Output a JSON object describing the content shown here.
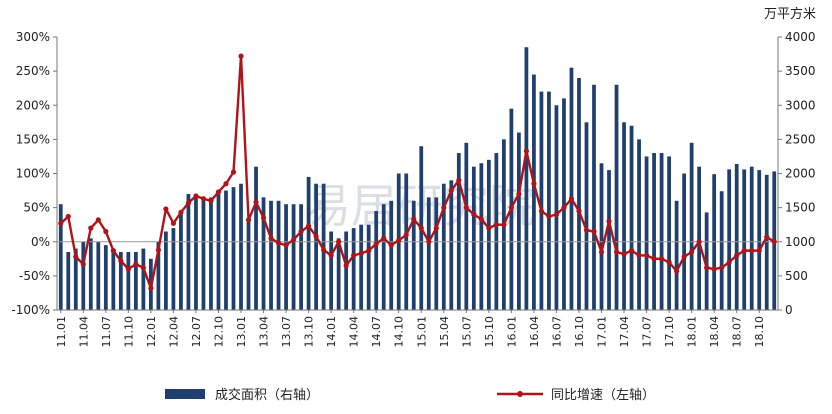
{
  "chart_data": {
    "type": "bar-line",
    "title": "",
    "watermark": "易居研究院",
    "right_axis_unit": "万平方米",
    "colors": {
      "bar": "#1f3f6e",
      "line": "#b0141b"
    },
    "left_axis": {
      "ylim": [
        -100,
        300
      ],
      "ticks": [
        "-100%",
        "-50%",
        "0%",
        "50%",
        "100%",
        "150%",
        "200%",
        "250%",
        "300%"
      ]
    },
    "right_axis": {
      "ylim": [
        0,
        4000
      ],
      "ticks": [
        "0",
        "500",
        "1000",
        "1500",
        "2000",
        "2500",
        "3000",
        "3500",
        "4000"
      ]
    },
    "x_tick_labels": [
      "11.01",
      "11.04",
      "11.07",
      "11.10",
      "12.01",
      "12.04",
      "12.07",
      "12.10",
      "13.01",
      "13.04",
      "13.07",
      "13.10",
      "14.01",
      "14.04",
      "14.07",
      "14.10",
      "15.01",
      "15.04",
      "15.07",
      "15.10",
      "16.01",
      "16.04",
      "16.07",
      "16.10",
      "17.01",
      "17.04",
      "17.07",
      "17.10",
      "18.01",
      "18.04",
      "18.07",
      "18.10"
    ],
    "months": [
      "11.01",
      "11.02",
      "11.03",
      "11.04",
      "11.05",
      "11.06",
      "11.07",
      "11.08",
      "11.09",
      "11.10",
      "11.11",
      "11.12",
      "12.01",
      "12.02",
      "12.03",
      "12.04",
      "12.05",
      "12.06",
      "12.07",
      "12.08",
      "12.09",
      "12.10",
      "12.11",
      "12.12",
      "13.01",
      "13.02",
      "13.03",
      "13.04",
      "13.05",
      "13.06",
      "13.07",
      "13.08",
      "13.09",
      "13.10",
      "13.11",
      "13.12",
      "14.01",
      "14.02",
      "14.03",
      "14.04",
      "14.05",
      "14.06",
      "14.07",
      "14.08",
      "14.09",
      "14.10",
      "14.11",
      "14.12",
      "15.01",
      "15.02",
      "15.03",
      "15.04",
      "15.05",
      "15.06",
      "15.07",
      "15.08",
      "15.09",
      "15.10",
      "15.11",
      "15.12",
      "16.01",
      "16.02",
      "16.03",
      "16.04",
      "16.05",
      "16.06",
      "16.07",
      "16.08",
      "16.09",
      "16.10",
      "16.11",
      "16.12",
      "17.01",
      "17.02",
      "17.03",
      "17.04",
      "17.05",
      "17.06",
      "17.07",
      "17.08",
      "17.09",
      "17.10",
      "17.11",
      "17.12",
      "18.01",
      "18.02",
      "18.03",
      "18.04",
      "18.05",
      "18.06",
      "18.07",
      "18.08",
      "18.09",
      "18.10",
      "18.11",
      "18.12"
    ],
    "series": [
      {
        "name": "成交面积（右轴）",
        "type": "bar",
        "axis": "right",
        "values": [
          1550,
          850,
          900,
          1000,
          1050,
          1000,
          950,
          900,
          850,
          850,
          850,
          900,
          750,
          1000,
          1150,
          1200,
          1450,
          1700,
          1700,
          1650,
          1650,
          1700,
          1750,
          1800,
          1850,
          1300,
          2100,
          1650,
          1600,
          1600,
          1550,
          1550,
          1550,
          1950,
          1850,
          1850,
          1150,
          1050,
          1150,
          1200,
          1250,
          1250,
          1450,
          1550,
          1600,
          2000,
          2000,
          1600,
          2400,
          1650,
          1650,
          1850,
          1900,
          2300,
          2450,
          2100,
          2150,
          2200,
          2300,
          2500,
          2950,
          2600,
          3850,
          3450,
          3200,
          3200,
          3000,
          3100,
          3550,
          3400,
          2750,
          3300,
          2150,
          2050,
          3300,
          2750,
          2700,
          2500,
          2250,
          2300,
          2300,
          2250,
          1600,
          2000,
          2450,
          2100,
          1430,
          1990,
          1740,
          2060,
          2140,
          2060,
          2100,
          2050,
          1980,
          2030
        ]
      },
      {
        "name": "同比增速（左轴）",
        "type": "line",
        "axis": "left",
        "values": [
          27,
          37,
          -22,
          -33,
          20,
          32,
          15,
          -13,
          -28,
          -40,
          -33,
          -38,
          -68,
          -12,
          48,
          27,
          43,
          57,
          67,
          63,
          60,
          73,
          85,
          102,
          272,
          32,
          58,
          35,
          5,
          -2,
          -5,
          3,
          15,
          23,
          8,
          -12,
          -20,
          0,
          -35,
          -20,
          -17,
          -13,
          -3,
          5,
          -5,
          2,
          10,
          33,
          20,
          0,
          20,
          50,
          75,
          90,
          50,
          40,
          33,
          20,
          25,
          25,
          50,
          70,
          133,
          85,
          45,
          37,
          40,
          50,
          63,
          45,
          17,
          15,
          -15,
          30,
          -15,
          -18,
          -13,
          -20,
          -20,
          -25,
          -25,
          -30,
          -43,
          -22,
          -15,
          0,
          -38,
          -40,
          -38,
          -30,
          -20,
          -13,
          -13,
          -13,
          7,
          0
        ]
      }
    ],
    "legend": [
      "成交面积（右轴）",
      "同比增速（左轴）"
    ],
    "legend_position": "bottom",
    "grid": false
  }
}
